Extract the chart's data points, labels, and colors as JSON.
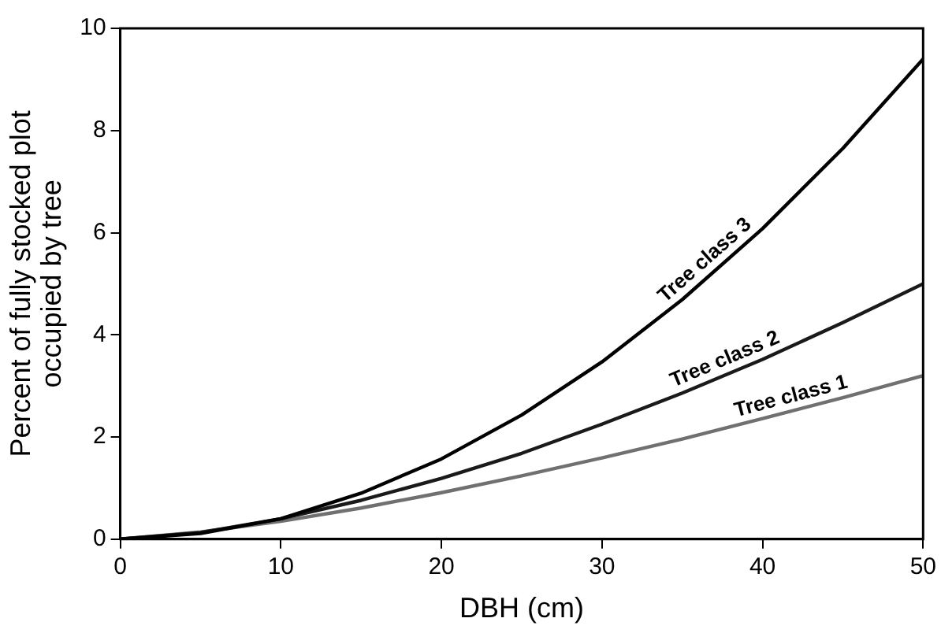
{
  "chart_data": {
    "type": "line",
    "xlabel": "DBH (cm)",
    "ylabel": "Percent of fully stocked plot\noccupied by tree",
    "x": [
      0,
      5,
      10,
      15,
      20,
      25,
      30,
      35,
      40,
      45,
      50
    ],
    "series": [
      {
        "color": "#000000",
        "values": [
          0,
          0.11,
          0.4,
          0.9,
          1.57,
          2.43,
          3.47,
          4.69,
          6.08,
          7.65,
          9.4
        ]
      },
      {
        "color": "#1a1a1a",
        "values": [
          0,
          0.13,
          0.4,
          0.76,
          1.19,
          1.68,
          2.25,
          2.86,
          3.52,
          4.24,
          5.0
        ]
      },
      {
        "color": "#707070",
        "values": [
          0,
          0.14,
          0.35,
          0.61,
          0.91,
          1.24,
          1.59,
          1.96,
          2.36,
          2.77,
          3.2
        ]
      }
    ],
    "annotations": [
      {
        "text": "Tree class 3",
        "x": 37,
        "y": 5.25
      },
      {
        "text": "Tree class 2",
        "x": 38,
        "y": 3.26
      },
      {
        "text": "Tree class 1",
        "x": 42,
        "y": 2.52
      }
    ],
    "xlim": [
      0,
      50
    ],
    "xticks": [
      0,
      10,
      20,
      30,
      40,
      50
    ],
    "ylim": [
      0,
      10
    ],
    "yticks": [
      0,
      2,
      4,
      6,
      8,
      10
    ],
    "grid": false,
    "legend": false,
    "marker": "none",
    "line_style": "solid"
  }
}
